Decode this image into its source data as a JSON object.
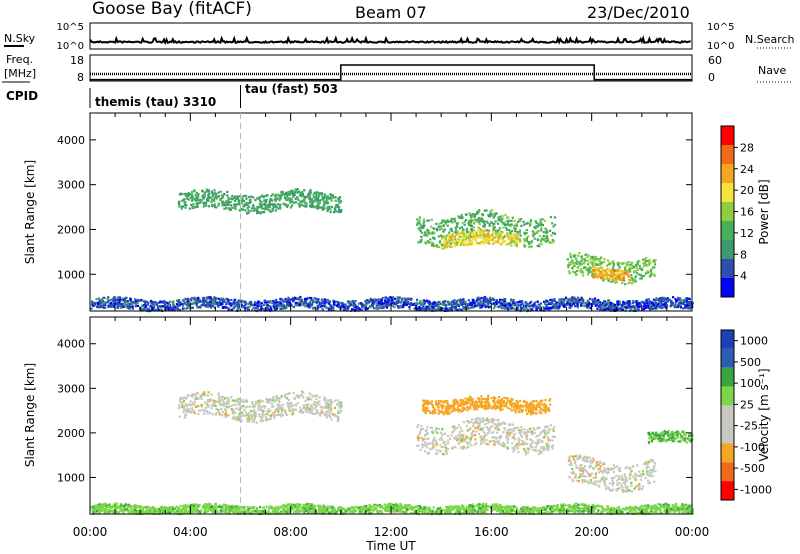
{
  "header": {
    "station": "Goose Bay (fitACF)",
    "beam": "Beam 07",
    "date": "23/Dec/2010"
  },
  "status_panels": {
    "nsky_label": "N.Sky",
    "nsearch_label": "N.Search",
    "noise_ticks": [
      "10^5",
      "10^0"
    ],
    "freq_label_1": "Freq.",
    "freq_label_2": "[MHz]",
    "freq_ticks": [
      "18",
      "8"
    ],
    "nave_label": "Nave",
    "nave_ticks": [
      "60",
      "0"
    ],
    "cpid_label": "CPID",
    "cpid_segments": [
      {
        "label": "themis (tau) 3310",
        "start_hour": 0,
        "end_hour": 6
      },
      {
        "label": "tau (fast) 503",
        "start_hour": 6,
        "end_hour": 24
      }
    ],
    "nave_step": [
      {
        "start_hour": 0,
        "end_hour": 10,
        "level": 1
      },
      {
        "start_hour": 10,
        "end_hour": 20.1,
        "level": 36
      },
      {
        "start_hour": 20.1,
        "end_hour": 24,
        "level": 1
      }
    ]
  },
  "colors": {
    "power_scale": [
      "#0000ff",
      "#2c4fb0",
      "#3c9a6e",
      "#47b05a",
      "#8fcf3f",
      "#f2e43a",
      "#f5a623",
      "#f06a17",
      "#ff0000"
    ],
    "velocity_scale": [
      "#ff0000",
      "#f06a17",
      "#f5a623",
      "#c8c8c0",
      "#c8c8c0",
      "#7cd64a",
      "#3aa540",
      "#2c5fb0",
      "#1e3fb8"
    ],
    "ground_scatter": "#c8c8c0"
  },
  "chart_data": [
    {
      "type": "heatmap",
      "panel": "power",
      "ylabel": "Slant Range [km]",
      "xlim_hours": [
        0,
        24
      ],
      "ylim_km": [
        180,
        4600
      ],
      "yticks": [
        1000,
        2000,
        3000,
        4000
      ],
      "colorbar_label": "Power [dB]",
      "colorbar_ticks": [
        "4",
        "8",
        "12",
        "16",
        "20",
        "24",
        "28"
      ],
      "regions": [
        {
          "t_start": 3.5,
          "t_end": 10.0,
          "r_center": 2650,
          "r_half": 200,
          "value_db": 12
        },
        {
          "t_start": 13.0,
          "t_end": 18.5,
          "r_center": 2050,
          "r_half": 300,
          "value_db": 14
        },
        {
          "t_start": 14.0,
          "t_end": 17.0,
          "r_center": 1800,
          "r_half": 150,
          "value_db": 22
        },
        {
          "t_start": 19.0,
          "t_end": 22.5,
          "r_center": 1150,
          "r_half": 250,
          "value_db": 16
        },
        {
          "t_start": 20.0,
          "t_end": 21.5,
          "r_center": 1050,
          "r_half": 120,
          "value_db": 26
        },
        {
          "t_start": 0.0,
          "t_end": 24.0,
          "r_center": 350,
          "r_half": 120,
          "value_db": 6
        }
      ]
    },
    {
      "type": "heatmap",
      "panel": "velocity",
      "xlabel": "Time UT",
      "ylabel": "Slant Range [km]",
      "xlim_hours": [
        0,
        24
      ],
      "ylim_km": [
        180,
        4600
      ],
      "yticks": [
        1000,
        2000,
        3000,
        4000
      ],
      "xticks": [
        "00:00",
        "04:00",
        "08:00",
        "12:00",
        "16:00",
        "20:00",
        "00:00"
      ],
      "colorbar_label": "Velocity [m s⁻¹]",
      "colorbar_ticks": [
        "1000",
        "500",
        "100",
        "25",
        "-25",
        "-100",
        "-500",
        "-1000"
      ],
      "regions": [
        {
          "t_start": 3.5,
          "t_end": 10.0,
          "r_center": 2600,
          "r_half": 250,
          "velocity": 0
        },
        {
          "t_start": 13.0,
          "t_end": 18.5,
          "r_center": 1950,
          "r_half": 300,
          "velocity": 0
        },
        {
          "t_start": 13.2,
          "t_end": 18.3,
          "r_center": 2650,
          "r_half": 150,
          "velocity": -200
        },
        {
          "t_start": 19.0,
          "t_end": 22.5,
          "r_center": 1100,
          "r_half": 300,
          "velocity": 0
        },
        {
          "t_start": 22.2,
          "t_end": 24.0,
          "r_center": 1900,
          "r_half": 120,
          "velocity": 100
        },
        {
          "t_start": 0.0,
          "t_end": 24.0,
          "r_center": 300,
          "r_half": 100,
          "velocity": 80
        }
      ]
    }
  ]
}
